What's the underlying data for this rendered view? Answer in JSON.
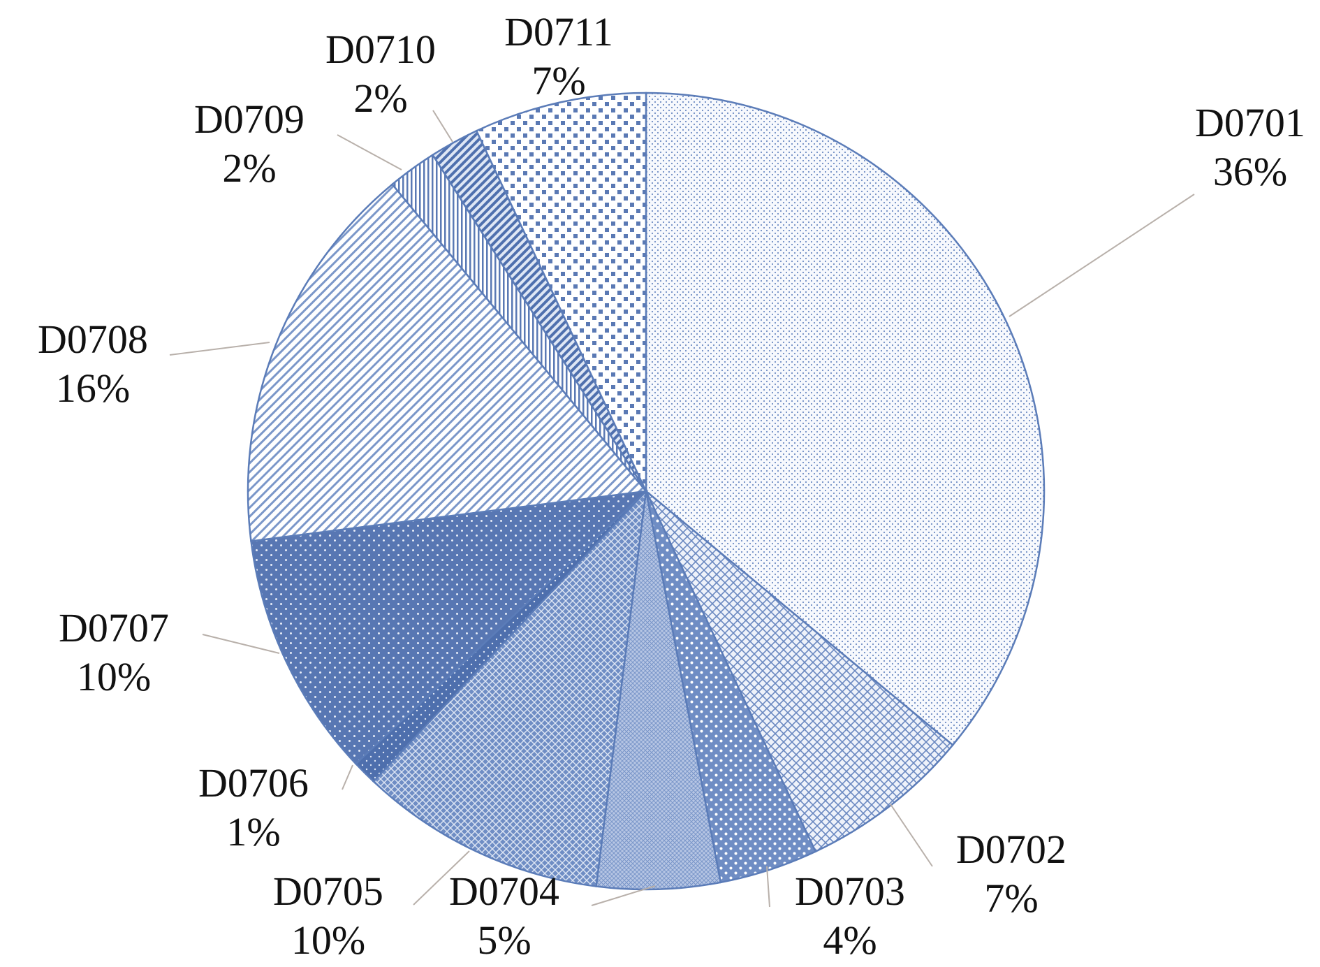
{
  "chart_data": {
    "type": "pie",
    "title": "",
    "labels": [
      "D0701",
      "D0702",
      "D0703",
      "D0704",
      "D0705",
      "D0706",
      "D0707",
      "D0708",
      "D0709",
      "D0710",
      "D0711"
    ],
    "values": [
      36,
      7,
      4,
      5,
      10,
      1,
      10,
      16,
      2,
      2,
      7
    ],
    "value_labels": [
      "36%",
      "7%",
      "4%",
      "5%",
      "10%",
      "1%",
      "10%",
      "16%",
      "2%",
      "2%",
      "7%"
    ],
    "start_angle": "12 o'clock",
    "direction": "clockwise",
    "legend": "none",
    "data_labels": "outside with leader lines",
    "colors": {
      "edge": "#5b7cb8",
      "light_fill": "#f4f7fc",
      "medium_fill": "#c9d5ec",
      "dark_fill": "#5a79b4",
      "leader": "#b8b0aa",
      "label_text": "#111111"
    }
  }
}
